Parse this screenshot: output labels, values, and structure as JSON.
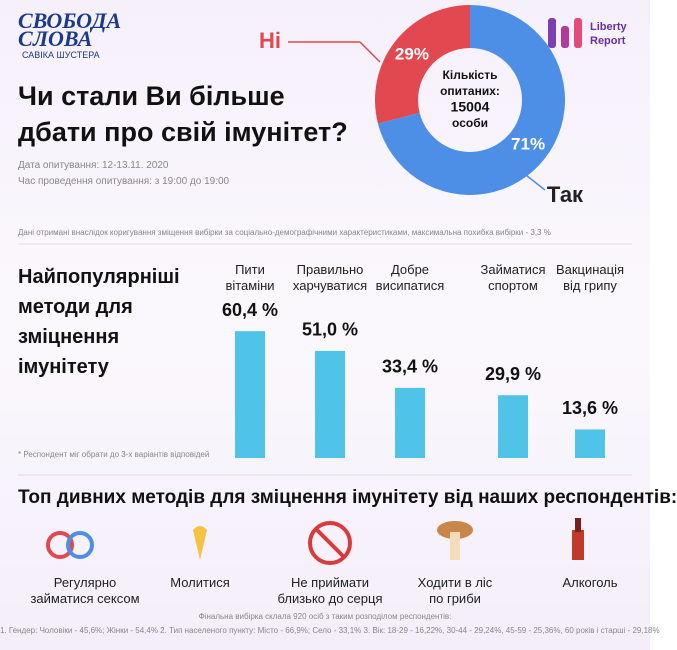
{
  "header": {
    "logo_line1": "СВОБОДА",
    "logo_line2": "СЛОВА",
    "logo_line3": "САВІКА ШУСТЕРА",
    "partner_line1": "Liberty",
    "partner_line2": "Report"
  },
  "title_lines": [
    "Чи стали Ви більше",
    "дбати про свій імунітет?"
  ],
  "survey_date": "Дата опитування:  12-13.11. 2020",
  "survey_time": "Час проведення опитування: з 19:00 до 19:00",
  "method_note": "Дані отримані внаслідок коригування зміщення вибірки за соціально-демографічними характеристиками, максимальна похибка вибірки - 3,3 %",
  "chart_data": [
    {
      "type": "pie",
      "categories": [
        "Ні",
        "Так"
      ],
      "values": [
        29,
        71
      ],
      "value_labels": [
        "29%",
        "71%"
      ],
      "colors": [
        "#e2484f",
        "#4d8fe6"
      ],
      "center_text": [
        "Кількість",
        "опитаних:",
        "15004",
        "особи"
      ]
    },
    {
      "type": "bar",
      "title_lines": [
        "Найпопулярніші",
        "методи для",
        "зміцнення",
        "імунітету"
      ],
      "categories": [
        [
          "Пити",
          "вітаміни"
        ],
        [
          "Правильно",
          "харчуватися"
        ],
        [
          "Добре",
          "висипатися"
        ],
        [
          "Займатися",
          "спортом"
        ],
        [
          "Вакцинація",
          "від грипу"
        ]
      ],
      "values": [
        60.4,
        51.0,
        33.4,
        29.9,
        13.6
      ],
      "value_labels": [
        "60,4 %",
        "51,0 %",
        "33,4 %",
        "29,9 %",
        "13,6 %"
      ],
      "color": "#4fc3e8",
      "note": "* Респондент міг обрати до 3-х варіантів відповідей"
    }
  ],
  "weird_methods": {
    "title": "Топ дивних методів для зміцнення імунітету від наших респондентів:",
    "items": [
      [
        "Регулярно",
        "займатися сексом"
      ],
      [
        "Молитися"
      ],
      [
        "Не приймати",
        "близько до серця"
      ],
      [
        "Ходити в ліс",
        "по гриби"
      ],
      [
        "Алкоголь"
      ]
    ]
  },
  "footer": {
    "line1": "Фінальна вибірка склала 920 осіб з таким розподілом респондентів:",
    "line2": "1. Гендер: Чоловіки - 45,6%; Жінки - 54,4% 2. Тип населеного пункту: Місто - 66,9%; Село - 33,1% 3. Вік: 18-29 - 16,22%, 30-44 - 29,24%, 45-59 - 25,36%, 60 років і старші - 29,18%"
  }
}
